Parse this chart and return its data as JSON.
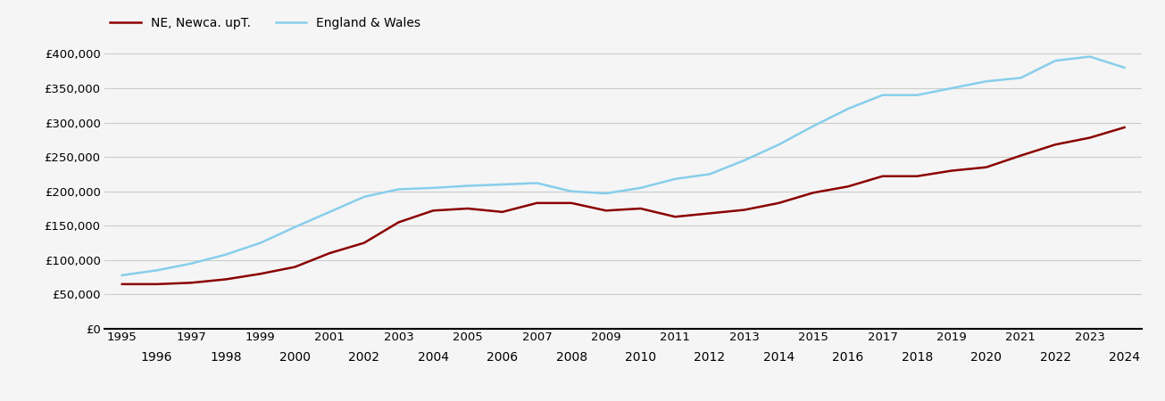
{
  "ne_years": [
    1995,
    1996,
    1997,
    1998,
    1999,
    2000,
    2001,
    2002,
    2003,
    2004,
    2005,
    2006,
    2007,
    2008,
    2009,
    2010,
    2011,
    2012,
    2013,
    2014,
    2015,
    2016,
    2017,
    2018,
    2019,
    2020,
    2021,
    2022,
    2023,
    2024
  ],
  "ne_values": [
    65000,
    65000,
    67000,
    72000,
    80000,
    90000,
    110000,
    125000,
    155000,
    172000,
    175000,
    170000,
    183000,
    183000,
    172000,
    175000,
    163000,
    168000,
    173000,
    183000,
    198000,
    207000,
    222000,
    222000,
    230000,
    235000,
    252000,
    268000,
    278000,
    293000
  ],
  "ew_years": [
    1995,
    1996,
    1997,
    1998,
    1999,
    2000,
    2001,
    2002,
    2003,
    2004,
    2005,
    2006,
    2007,
    2008,
    2009,
    2010,
    2011,
    2012,
    2013,
    2014,
    2015,
    2016,
    2017,
    2018,
    2019,
    2020,
    2021,
    2022,
    2023,
    2024
  ],
  "ew_values": [
    78000,
    85000,
    95000,
    108000,
    125000,
    148000,
    170000,
    192000,
    203000,
    205000,
    208000,
    210000,
    212000,
    200000,
    197000,
    205000,
    218000,
    225000,
    245000,
    268000,
    295000,
    320000,
    340000,
    340000,
    350000,
    360000,
    365000,
    390000,
    396000,
    380000
  ],
  "ne_color": "#8B0000",
  "ew_color": "#87CEEB",
  "ne_label": "NE, Newca. upT.",
  "ew_label": "England & Wales",
  "ylim": [
    0,
    420000
  ],
  "yticks": [
    0,
    50000,
    100000,
    150000,
    200000,
    250000,
    300000,
    350000,
    400000
  ],
  "ytick_labels": [
    "£0",
    "£50,000",
    "£100,000",
    "£150,000",
    "£200,000",
    "£250,000",
    "£300,000",
    "£350,000",
    "£400,000"
  ],
  "xlim": [
    1994.5,
    2024.5
  ],
  "line_width": 1.8,
  "bg_color": "#f5f5f5",
  "grid_color": "#cccccc",
  "legend_fontsize": 10,
  "tick_fontsize": 9.5
}
